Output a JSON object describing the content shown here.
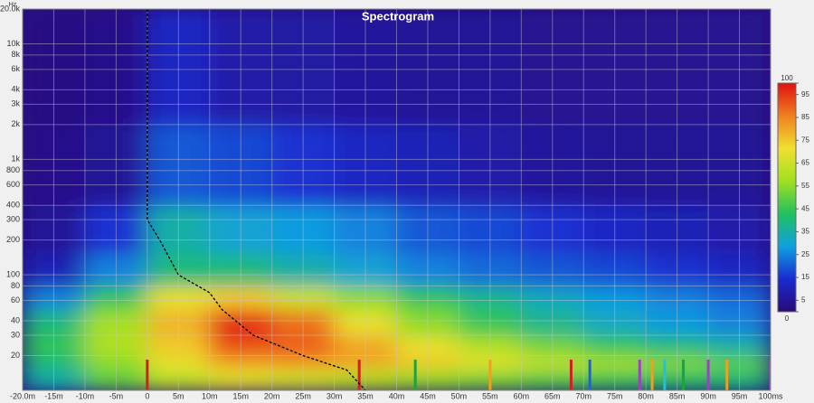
{
  "chart_data": {
    "type": "heatmap",
    "title": "Spectrogram",
    "y_unit": "Hz",
    "xlim": [
      -20,
      100
    ],
    "ylim": [
      10,
      20000
    ],
    "log_y": true,
    "grid": true,
    "xticks": [
      {
        "value": -20,
        "label": "-20.0m"
      },
      {
        "value": -15,
        "label": "-15m"
      },
      {
        "value": -10,
        "label": "-10m"
      },
      {
        "value": -5,
        "label": "-5m"
      },
      0,
      {
        "value": 5,
        "label": "5m"
      },
      {
        "value": 10,
        "label": "10m"
      },
      {
        "value": 15,
        "label": "15m"
      },
      {
        "value": 20,
        "label": "20m"
      },
      {
        "value": 25,
        "label": "25m"
      },
      {
        "value": 30,
        "label": "30m"
      },
      {
        "value": 35,
        "label": "35m"
      },
      {
        "value": 40,
        "label": "40m"
      },
      {
        "value": 45,
        "label": "45m"
      },
      {
        "value": 50,
        "label": "50m"
      },
      {
        "value": 55,
        "label": "55m"
      },
      {
        "value": 60,
        "label": "60m"
      },
      {
        "value": 65,
        "label": "65m"
      },
      {
        "value": 70,
        "label": "70m"
      },
      {
        "value": 75,
        "label": "75m"
      },
      {
        "value": 80,
        "label": "80m"
      },
      {
        "value": 85,
        "label": "85m"
      },
      {
        "value": 90,
        "label": "90m"
      },
      {
        "value": 95,
        "label": "95m"
      },
      {
        "value": 100,
        "label": "100ms"
      }
    ],
    "yticks": [
      20,
      30,
      40,
      60,
      80,
      100,
      200,
      300,
      400,
      600,
      800,
      {
        "value": 1000,
        "label": "1k"
      },
      {
        "value": 2000,
        "label": "2k"
      },
      {
        "value": 3000,
        "label": "3k"
      },
      {
        "value": 4000,
        "label": "4k"
      },
      {
        "value": 6000,
        "label": "6k"
      },
      {
        "value": 8000,
        "label": "8k"
      },
      {
        "value": 10000,
        "label": "10k"
      },
      {
        "value": 20000,
        "label": "20.0k"
      }
    ],
    "x_edges": [
      -20,
      -10,
      0,
      10,
      20,
      30,
      40,
      50,
      60,
      70,
      80,
      90,
      100
    ],
    "y_edges": [
      10,
      15,
      20,
      30,
      50,
      80,
      150,
      400,
      2000,
      20000
    ],
    "z": [
      [
        35,
        50,
        62,
        68,
        65,
        60,
        55,
        52,
        48,
        45,
        42,
        40
      ],
      [
        40,
        55,
        70,
        80,
        82,
        80,
        75,
        70,
        65,
        60,
        55,
        50
      ],
      [
        45,
        60,
        75,
        92,
        90,
        80,
        70,
        60,
        52,
        45,
        40,
        35
      ],
      [
        40,
        58,
        78,
        97,
        88,
        70,
        55,
        45,
        38,
        32,
        28,
        25
      ],
      [
        25,
        45,
        70,
        75,
        65,
        55,
        45,
        38,
        32,
        28,
        25,
        22
      ],
      [
        10,
        25,
        40,
        40,
        35,
        30,
        25,
        22,
        20,
        18,
        15,
        12
      ],
      [
        5,
        15,
        35,
        30,
        28,
        25,
        20,
        18,
        15,
        12,
        10,
        8
      ],
      [
        3,
        5,
        20,
        18,
        15,
        12,
        10,
        8,
        6,
        5,
        5,
        5
      ],
      [
        2,
        3,
        12,
        8,
        7,
        6,
        5,
        5,
        4,
        4,
        4,
        4
      ]
    ],
    "colormap": [
      "#2a0a78",
      "#1a2ad0",
      "#10a0e0",
      "#20c060",
      "#a0e020",
      "#f0e030",
      "#f08020",
      "#e01010"
    ],
    "zlim": [
      0,
      100
    ],
    "zticks": [
      0,
      5,
      15,
      25,
      35,
      45,
      55,
      65,
      75,
      85,
      95,
      100
    ],
    "curve": {
      "x": [
        0,
        0,
        0,
        0,
        2,
        5,
        10,
        12,
        17,
        25,
        32,
        35
      ],
      "y": [
        20000,
        3000,
        1000,
        300,
        200,
        100,
        70,
        50,
        30,
        20,
        15,
        10
      ]
    },
    "markers": [
      {
        "x": 0,
        "color": "#d02020"
      },
      {
        "x": 34,
        "color": "#d02020"
      },
      {
        "x": 43,
        "color": "#20a040"
      },
      {
        "x": 55,
        "color": "#f0a020"
      },
      {
        "x": 68,
        "color": "#d02020"
      },
      {
        "x": 71,
        "color": "#2060e0"
      },
      {
        "x": 79,
        "color": "#a040c0"
      },
      {
        "x": 81,
        "color": "#f0a020"
      },
      {
        "x": 83,
        "color": "#20c0e0"
      },
      {
        "x": 86,
        "color": "#20a040"
      },
      {
        "x": 90,
        "color": "#a040c0"
      },
      {
        "x": 93,
        "color": "#f0a020"
      },
      {
        "x": 100,
        "color": "#a040c0"
      }
    ]
  }
}
